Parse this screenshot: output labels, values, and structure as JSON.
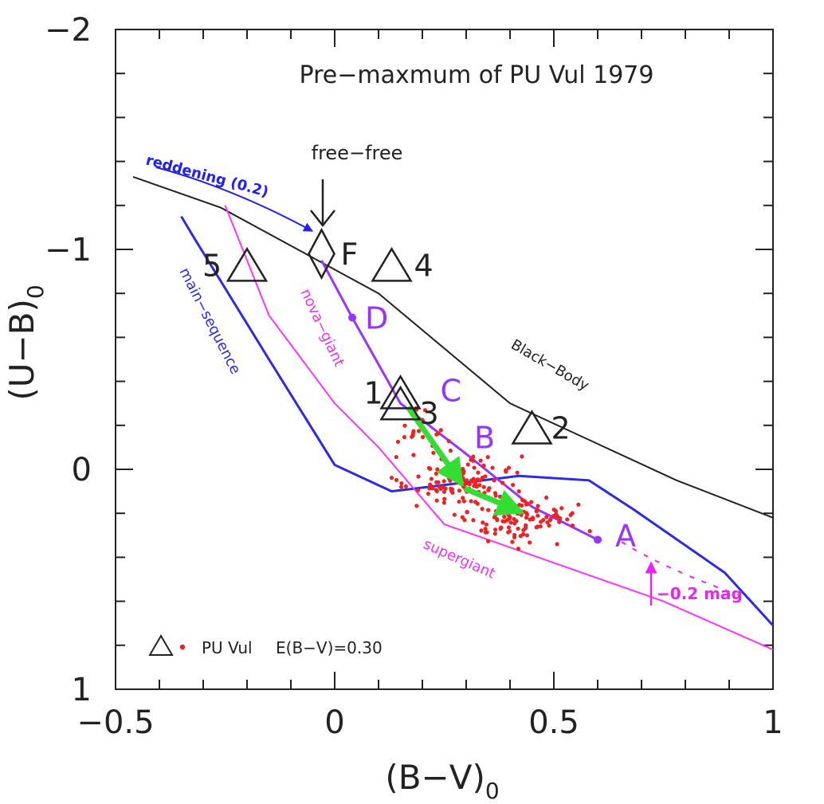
{
  "chart_data": {
    "type": "scatter",
    "title": "Pre−maxmum of PU Vul 1979",
    "xlabel": "(B−V)",
    "xlabel_sub": "0",
    "ylabel": "(U−B)",
    "ylabel_sub": "0",
    "xlim": [
      -0.5,
      1.0
    ],
    "ylim": [
      1.0,
      -2.0
    ],
    "y_inverted": true,
    "x_ticks": [
      -0.5,
      0,
      0.5,
      1
    ],
    "x_tick_labels": [
      "−0.5",
      "0",
      "0.5",
      "1"
    ],
    "y_ticks": [
      -2,
      -1,
      0,
      1
    ],
    "y_tick_labels": [
      "−2",
      "−1",
      "0",
      "1"
    ],
    "x_minor_step": 0.1,
    "y_minor_step": 0.2,
    "grid": false,
    "legend": {
      "placement": "bottom-left",
      "label": "PU Vul",
      "extra": "E(B−V)=0.30"
    },
    "colors": {
      "black_body": "#222222",
      "main_sequence": "#2a2ae8",
      "nova_giant": "#ff33ff",
      "track": "#9933ff",
      "green_arrow": "#33dd33",
      "scatter": "#ee2222",
      "reddening": "#2222ee",
      "shift": "#ee22ee"
    },
    "series": [
      {
        "name": "Black−Body",
        "kind": "line",
        "x": [
          -0.46,
          -0.26,
          0.1,
          0.4,
          0.78,
          1.0
        ],
        "y": [
          -1.33,
          -1.19,
          -0.8,
          -0.3,
          0.05,
          0.22
        ]
      },
      {
        "name": "main−sequence",
        "kind": "line",
        "x": [
          -0.35,
          -0.32,
          -0.15,
          0.0,
          0.13,
          0.42,
          0.58,
          0.68,
          0.89,
          1.0
        ],
        "y": [
          -1.15,
          -1.05,
          -0.5,
          -0.02,
          0.1,
          0.03,
          0.05,
          0.18,
          0.47,
          0.71
        ]
      },
      {
        "name": "nova−giant",
        "kind": "line",
        "x": [
          -0.25,
          -0.15,
          0.0,
          0.1,
          0.25,
          0.75,
          1.0
        ],
        "y": [
          -1.2,
          -0.7,
          -0.3,
          -0.1,
          0.25,
          0.6,
          0.82
        ]
      },
      {
        "name": "",
        "kind": "track",
        "x": [
          -0.03,
          0.04,
          0.15,
          0.3,
          0.45,
          0.6
        ],
        "y": [
          -0.95,
          -0.69,
          -0.3,
          -0.07,
          0.17,
          0.32
        ]
      },
      {
        "name": "PU Vul",
        "kind": "triangle",
        "points": [
          {
            "label": "5",
            "x": -0.2,
            "y": -0.93
          },
          {
            "label": "4",
            "x": 0.13,
            "y": -0.93
          },
          {
            "label": "1",
            "x": 0.15,
            "y": -0.35
          },
          {
            "label": "3",
            "x": 0.15,
            "y": -0.3
          },
          {
            "label": "2",
            "x": 0.45,
            "y": -0.19
          }
        ]
      }
    ],
    "track_labels": [
      {
        "text": "D",
        "x": 0.04,
        "y": -0.69
      },
      {
        "text": "C",
        "x": 0.15,
        "y": -0.36
      },
      {
        "text": "B",
        "x": 0.3,
        "y": -0.06
      },
      {
        "text": "A",
        "x": 0.6,
        "y": 0.32
      }
    ],
    "free_free": {
      "label": "F",
      "x": -0.03,
      "y": -0.98
    },
    "scatter_seed": 13,
    "scatter_clusters": [
      {
        "cx": 0.28,
        "cy": 0.05,
        "sx": 0.06,
        "sy": 0.06,
        "n": 120
      },
      {
        "cx": 0.43,
        "cy": 0.22,
        "sx": 0.06,
        "sy": 0.05,
        "n": 110
      },
      {
        "cx": 0.2,
        "cy": -0.2,
        "sx": 0.04,
        "sy": 0.08,
        "n": 20
      }
    ],
    "annotations": {
      "black_body": "Black−Body",
      "main_sequence": "main−sequence",
      "nova_giant": "nova−giant",
      "supergiant": "supergiant",
      "free_free": "free−free",
      "reddening": "reddening (0.2)",
      "shift": "−0.2 mag",
      "legend_label": "PU Vul",
      "legend_extra": "E(B−V)=0.30"
    }
  }
}
